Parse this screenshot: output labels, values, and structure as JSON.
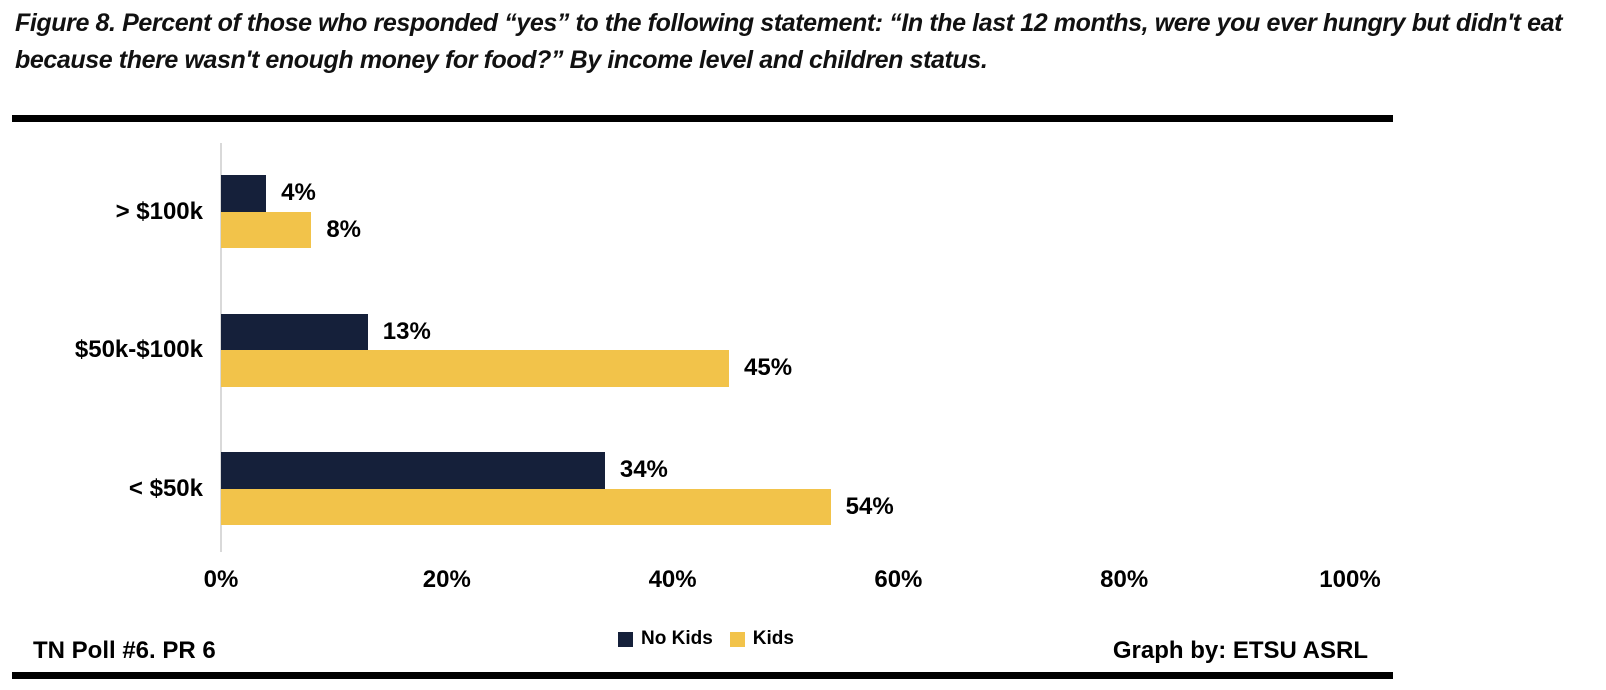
{
  "title": "Figure 8. Percent of those who responded “yes” to the following statement: “In the last 12 months, were you ever hungry but didn't eat because there wasn't enough money for food?” By income level and children status.",
  "footer": {
    "left": "TN Poll #6. PR 6",
    "right": "Graph by: ETSU ASRL"
  },
  "colors": {
    "no_kids": "#15203A",
    "kids": "#F2C34A",
    "axis_line": "#D9D9D9",
    "rule": "#000000",
    "text": "#000000"
  },
  "chart_data": {
    "type": "bar",
    "orientation": "horizontal",
    "title": "",
    "xlabel": "",
    "ylabel": "",
    "categories": [
      "> $100k",
      "$50k-$100k",
      "< $50k"
    ],
    "series": [
      {
        "name": "No Kids",
        "color": "#15203A",
        "values": [
          4,
          13,
          34
        ],
        "labels": [
          "4%",
          "13%",
          "34%"
        ]
      },
      {
        "name": "Kids",
        "color": "#F2C34A",
        "values": [
          8,
          45,
          54
        ],
        "labels": [
          "8%",
          "45%",
          "54%"
        ]
      }
    ],
    "x_axis": {
      "min": 0,
      "max": 100,
      "tick_values": [
        0,
        20,
        40,
        60,
        80,
        100
      ],
      "ticks": [
        "0%",
        "20%",
        "40%",
        "60%",
        "80%",
        "100%"
      ]
    },
    "grid": false,
    "legend_position": "bottom"
  }
}
